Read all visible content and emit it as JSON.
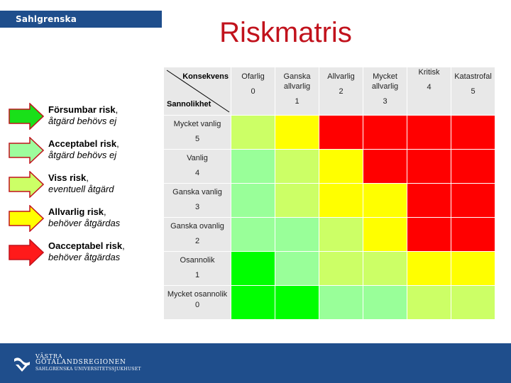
{
  "header": {
    "hospital": "Sahlgrenska Universitetssjukhuset",
    "title": "Riskmatris"
  },
  "legend": [
    {
      "strong": "Försumbar risk",
      "comma": ",",
      "note": "åtgärd behövs ej",
      "color": "#19e019"
    },
    {
      "strong": "Acceptabel risk",
      "comma": ",",
      "note": "åtgärd behövs ej",
      "color": "#9dfc9d"
    },
    {
      "strong": "Viss risk",
      "comma": ",",
      "note": "eventuell åtgärd",
      "color": "#ccff66"
    },
    {
      "strong": "Allvarlig risk",
      "comma": ",",
      "note": "behöver åtgärdas",
      "color": "#ffff00"
    },
    {
      "strong": "Oacceptabel risk",
      "comma": ",",
      "note": "behöver åtgärdas",
      "color": "#ff1a1a"
    }
  ],
  "matrix": {
    "konsekvens_label": "Konsekvens",
    "sannolikhet_label": "Sannolikhet",
    "columns": [
      {
        "label": "Ofarlig",
        "value": "0"
      },
      {
        "label": "Ganska allvarlig",
        "value": "1"
      },
      {
        "label": "Allvarlig",
        "value": "2"
      },
      {
        "label": "Mycket allvarlig",
        "value": "3"
      },
      {
        "label": "Kritisk",
        "value": "4"
      },
      {
        "label": "Katastrofal",
        "value": "5"
      }
    ],
    "rows": [
      {
        "label": "Mycket vanlig",
        "value": "5",
        "cells": [
          "#ccff66",
          "#ffff00",
          "#ff0000",
          "#ff0000",
          "#ff0000",
          "#ff0000"
        ]
      },
      {
        "label": "Vanlig",
        "value": "4",
        "cells": [
          "#99ff99",
          "#ccff66",
          "#ffff00",
          "#ff0000",
          "#ff0000",
          "#ff0000"
        ]
      },
      {
        "label": "Ganska vanlig",
        "value": "3",
        "cells": [
          "#99ff99",
          "#ccff66",
          "#ffff00",
          "#ffff00",
          "#ff0000",
          "#ff0000"
        ]
      },
      {
        "label": "Ganska ovanlig",
        "value": "2",
        "cells": [
          "#99ff99",
          "#99ff99",
          "#ccff66",
          "#ffff00",
          "#ff0000",
          "#ff0000"
        ]
      },
      {
        "label": "Osannolik",
        "value": "1",
        "cells": [
          "#00ff00",
          "#99ff99",
          "#ccff66",
          "#ccff66",
          "#ffff00",
          "#ffff00"
        ]
      },
      {
        "label": "Mycket osannolik",
        "value": "0",
        "cells": [
          "#00ff00",
          "#00ff00",
          "#99ff99",
          "#99ff99",
          "#ccff66",
          "#ccff66"
        ]
      }
    ]
  },
  "footer": {
    "line1": "VÄSTRA",
    "line2": "GÖTALANDSREGIONEN",
    "line3": "SAHLGRENSKA UNIVERSITETSSJUKHUSET"
  }
}
